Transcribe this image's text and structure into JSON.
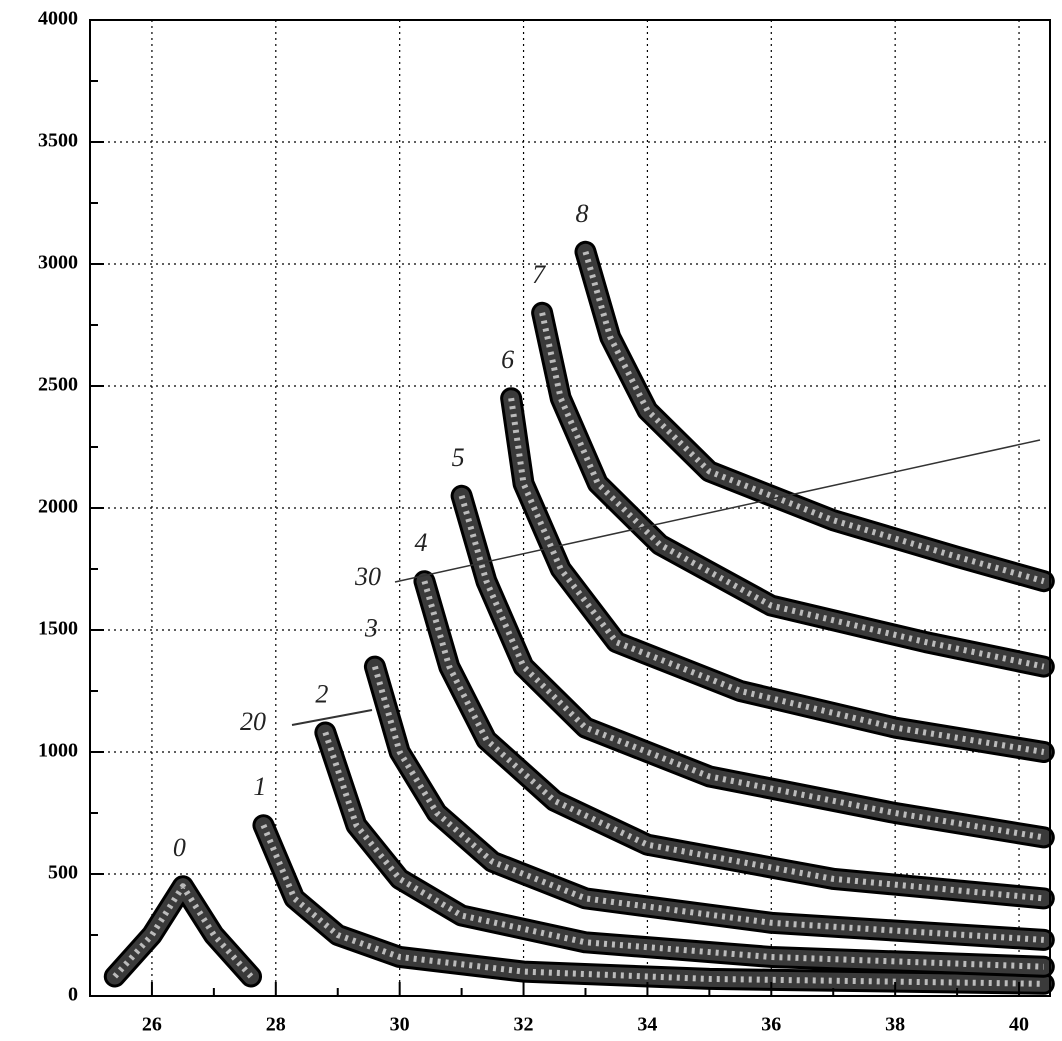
{
  "chart_data": {
    "type": "contour",
    "xlim": [
      25,
      40.5
    ],
    "ylim": [
      0,
      4000
    ],
    "xticks": [
      26,
      28,
      30,
      32,
      34,
      36,
      38,
      40
    ],
    "xminorticks": [
      25,
      27,
      29,
      31,
      33,
      35,
      37,
      39
    ],
    "yticks": [
      0,
      500,
      1000,
      1500,
      2000,
      2500,
      3000,
      3500,
      4000
    ],
    "yminorticks": [
      250,
      750,
      1250,
      1750,
      2250,
      2750,
      3250,
      3750
    ],
    "grid": true,
    "series": [
      {
        "name": "0",
        "color": "#3a3a3a",
        "x": [
          25.4,
          26.0,
          26.5,
          27.0,
          27.6
        ],
        "y": [
          80,
          250,
          450,
          250,
          80
        ]
      },
      {
        "name": "1",
        "color": "#3a3a3a",
        "x": [
          27.8,
          28.3,
          29,
          30,
          32,
          35,
          40.4
        ],
        "y": [
          700,
          400,
          250,
          160,
          100,
          70,
          50
        ]
      },
      {
        "name": "2",
        "color": "#3a3a3a",
        "x": [
          28.8,
          29.3,
          30,
          31,
          33,
          36,
          40.4
        ],
        "y": [
          1080,
          700,
          480,
          330,
          220,
          160,
          120
        ]
      },
      {
        "name": "3",
        "color": "#3a3a3a",
        "x": [
          29.6,
          30,
          30.6,
          31.5,
          33,
          36,
          40.4
        ],
        "y": [
          1350,
          1000,
          750,
          550,
          400,
          300,
          230
        ]
      },
      {
        "name": "4",
        "color": "#3a3a3a",
        "x": [
          30.4,
          30.8,
          31.4,
          32.5,
          34,
          37,
          40.4
        ],
        "y": [
          1700,
          1350,
          1050,
          800,
          620,
          480,
          400
        ]
      },
      {
        "name": "5",
        "color": "#3a3a3a",
        "x": [
          31,
          31.4,
          32,
          33,
          35,
          38,
          40.4
        ],
        "y": [
          2050,
          1700,
          1350,
          1100,
          900,
          750,
          650
        ]
      },
      {
        "name": "6",
        "color": "#3a3a3a",
        "x": [
          31.8,
          32,
          32.6,
          33.5,
          35.5,
          38,
          40.4
        ],
        "y": [
          2450,
          2100,
          1750,
          1450,
          1250,
          1100,
          1000
        ]
      },
      {
        "name": "7",
        "color": "#3a3a3a",
        "x": [
          32.3,
          32.6,
          33.2,
          34.2,
          36,
          38.5,
          40.4
        ],
        "y": [
          2800,
          2450,
          2100,
          1850,
          1600,
          1450,
          1350
        ]
      },
      {
        "name": "8",
        "color": "#3a3a3a",
        "x": [
          33,
          33.4,
          34,
          35,
          37,
          39,
          40.4
        ],
        "y": [
          3050,
          2700,
          2400,
          2150,
          1950,
          1800,
          1700
        ]
      }
    ],
    "annotations": [
      "20",
      "30"
    ]
  }
}
